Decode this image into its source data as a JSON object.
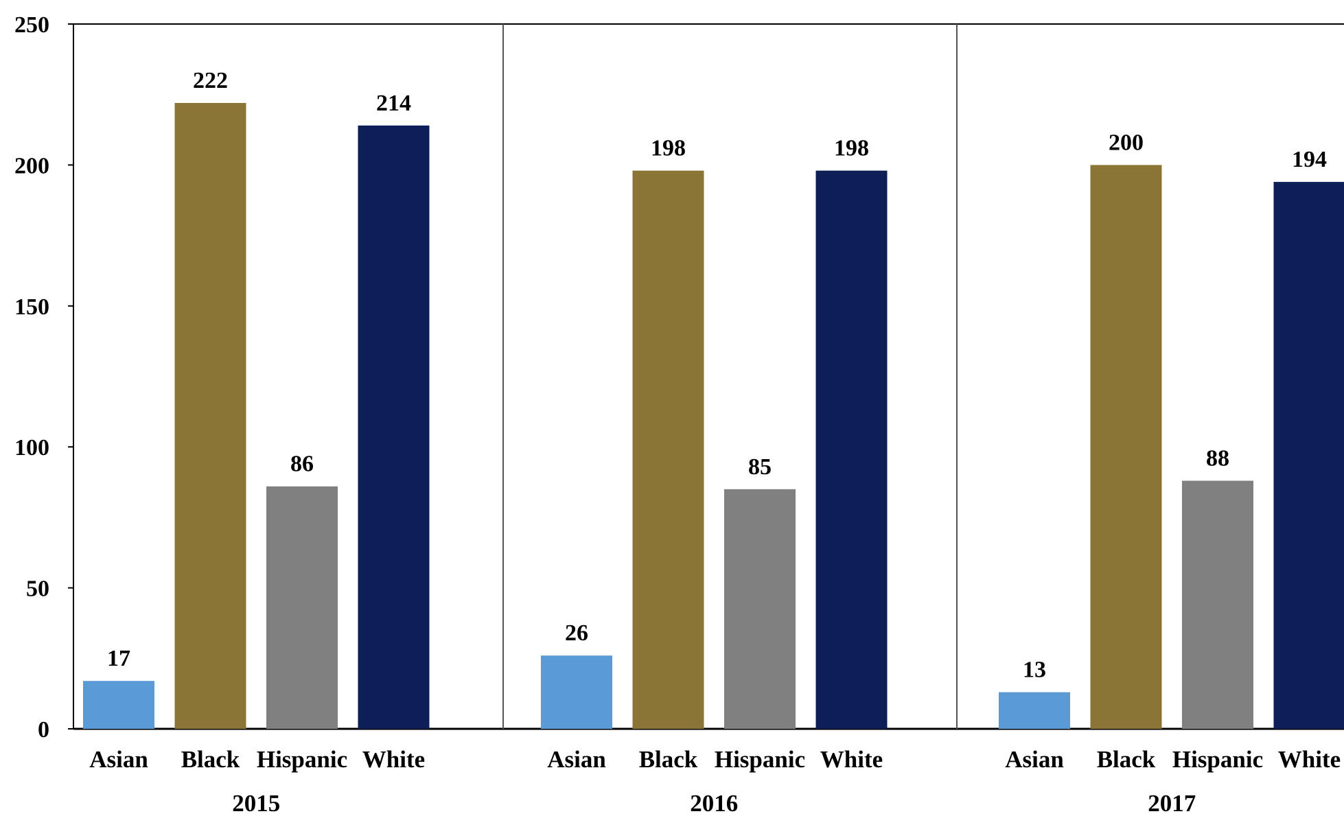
{
  "chart_data": {
    "type": "bar",
    "title": "",
    "xlabel": "",
    "ylabel": "",
    "ylim": [
      0,
      250
    ],
    "yticks": [
      0,
      50,
      100,
      150,
      200,
      250
    ],
    "grid": false,
    "legend": "none",
    "groups": [
      {
        "label": "2015",
        "categories": [
          "Asian",
          "Black",
          "Hispanic",
          "White"
        ],
        "values": [
          17,
          222,
          86,
          214
        ]
      },
      {
        "label": "2016",
        "categories": [
          "Asian",
          "Black",
          "Hispanic",
          "White"
        ],
        "values": [
          26,
          198,
          85,
          198
        ]
      },
      {
        "label": "2017",
        "categories": [
          "Asian",
          "Black",
          "Hispanic",
          "White"
        ],
        "values": [
          13,
          200,
          88,
          194
        ]
      }
    ],
    "category_colors": {
      "Asian": "#5b9bd5",
      "Black": "#8b7536",
      "Hispanic": "#808080",
      "White": "#0c1f56"
    },
    "axis_color": "#000000",
    "divider_color": "#555555"
  }
}
